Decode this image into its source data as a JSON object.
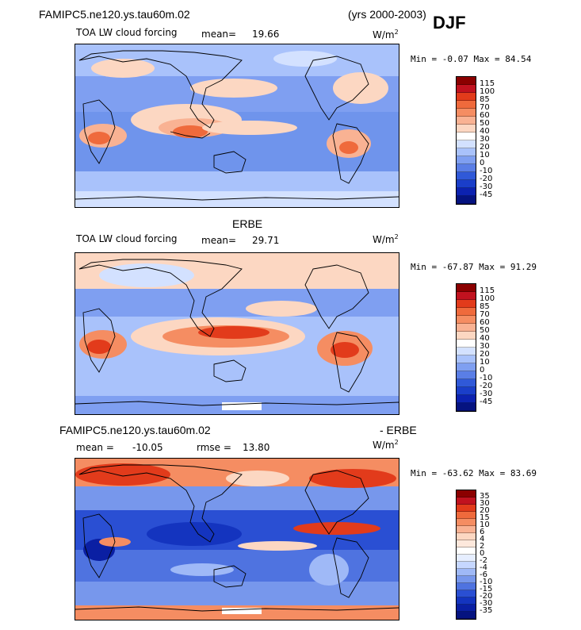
{
  "header": {
    "case_name": "FAMIPC5.ne120.ys.tau60m.02",
    "years": "(yrs 2000-2003)",
    "season": "DJF"
  },
  "panels": [
    {
      "subtitle": "TOA LW cloud forcing",
      "mean_label": "mean=",
      "mean_value": "19.66",
      "units": "W/m",
      "units_exp": "2",
      "minmax": "Min =  -0.07 Max =  84.54",
      "colorbar": {
        "labels": [
          "115",
          "100",
          "85",
          "70",
          "60",
          "50",
          "40",
          "30",
          "20",
          "10",
          "0",
          "-10",
          "-20",
          "-30",
          "-45"
        ],
        "colors": [
          "#8b0000",
          "#c1121f",
          "#e23b1b",
          "#ef6a3c",
          "#f58d62",
          "#f9b293",
          "#fcd7c2",
          "#ffffff",
          "#d3e1ff",
          "#a9c2fb",
          "#7f9ff1",
          "#5a7ee6",
          "#3059d8",
          "#1a3ec9",
          "#0c22b0",
          "#051380"
        ]
      },
      "main_color": "#d3e1ff"
    },
    {
      "title": "ERBE",
      "subtitle": "TOA LW cloud forcing",
      "mean_label": "mean=",
      "mean_value": "29.71",
      "units": "W/m",
      "units_exp": "2",
      "minmax": "Min = -67.87 Max =  91.29",
      "colorbar": {
        "labels": [
          "115",
          "100",
          "85",
          "70",
          "60",
          "50",
          "40",
          "30",
          "20",
          "10",
          "0",
          "-10",
          "-20",
          "-30",
          "-45"
        ],
        "colors": [
          "#8b0000",
          "#c1121f",
          "#e23b1b",
          "#ef6a3c",
          "#f58d62",
          "#f9b293",
          "#fcd7c2",
          "#ffffff",
          "#d3e1ff",
          "#a9c2fb",
          "#7f9ff1",
          "#5a7ee6",
          "#3059d8",
          "#1a3ec9",
          "#0c22b0",
          "#051380"
        ]
      }
    },
    {
      "title_left": "FAMIPC5.ne120.ys.tau60m.02",
      "title_right": "- ERBE",
      "mean_label": "mean =",
      "mean_value": "-10.05",
      "rmse_label": "rmse =",
      "rmse_value": "13.80",
      "units": "W/m",
      "units_exp": "2",
      "minmax": "Min = -63.62 Max =  83.69",
      "colorbar": {
        "labels": [
          "35",
          "30",
          "20",
          "15",
          "10",
          "6",
          "4",
          "2",
          "0",
          "-2",
          "-4",
          "-6",
          "-10",
          "-15",
          "-20",
          "-30",
          "-35"
        ],
        "colors": [
          "#8b0000",
          "#c1121f",
          "#e23b1b",
          "#ef6a3c",
          "#f58d62",
          "#f9b293",
          "#fcd7c2",
          "#fde8dc",
          "#ffffff",
          "#e6eeff",
          "#c6d7ff",
          "#9fb9f7",
          "#7797ec",
          "#4f73e0",
          "#2a4fd3",
          "#1434bf",
          "#0a1fa3",
          "#051380"
        ]
      }
    }
  ]
}
